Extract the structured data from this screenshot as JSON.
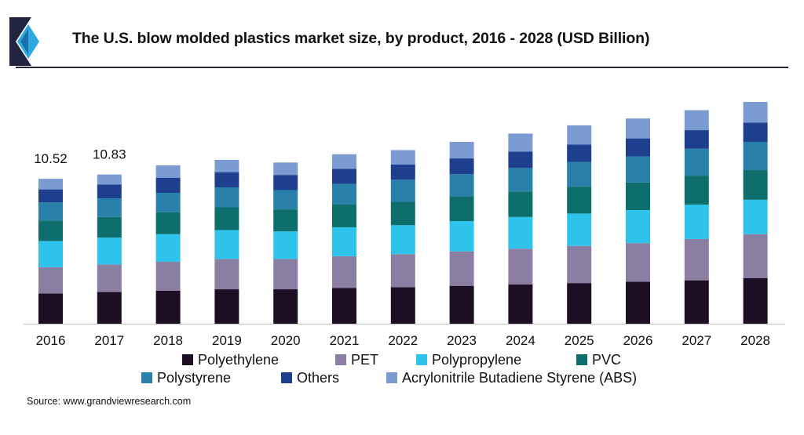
{
  "header": {
    "title": "The U.S. blow molded plastics market size, by product, 2016 - 2028 (USD Billion)"
  },
  "colors": {
    "accent": "#21243f",
    "logo_dark": "#21243f",
    "logo_light": "#2ea9e0"
  },
  "source": "Source: www.grandviewresearch.com",
  "chart_data": {
    "type": "bar",
    "stacked": true,
    "title": "The U.S. blow molded plastics market size, by product, 2016 - 2028 (USD Billion)",
    "xlabel": "",
    "ylabel": "",
    "ylim": [
      0,
      16.5
    ],
    "grid": false,
    "legend_position": "bottom",
    "categories": [
      "2016",
      "2017",
      "2018",
      "2019",
      "2020",
      "2021",
      "2022",
      "2023",
      "2024",
      "2025",
      "2026",
      "2027",
      "2028"
    ],
    "totals": [
      10.52,
      10.83,
      11.5,
      11.9,
      11.7,
      12.3,
      12.7,
      13.2,
      13.8,
      14.4,
      14.9,
      15.5,
      16.1
    ],
    "data_labels": [
      {
        "category": "2016",
        "text": "10.52"
      },
      {
        "category": "2017",
        "text": "10.83"
      }
    ],
    "series": [
      {
        "name": "Polyethylene",
        "color": "#1d0f23",
        "values": [
          2.2,
          2.3,
          2.4,
          2.5,
          2.5,
          2.6,
          2.65,
          2.75,
          2.85,
          2.95,
          3.05,
          3.15,
          3.3
        ]
      },
      {
        "name": "PET",
        "color": "#8a7fa3",
        "values": [
          1.9,
          2.0,
          2.1,
          2.2,
          2.2,
          2.3,
          2.4,
          2.5,
          2.6,
          2.7,
          2.8,
          3.0,
          3.2
        ]
      },
      {
        "name": "Polypropylene",
        "color": "#2ec3ea",
        "values": [
          1.9,
          1.95,
          2.0,
          2.1,
          2.0,
          2.1,
          2.1,
          2.2,
          2.3,
          2.35,
          2.4,
          2.5,
          2.5
        ]
      },
      {
        "name": "PVC",
        "color": "#0d6f6b",
        "values": [
          1.5,
          1.5,
          1.6,
          1.65,
          1.6,
          1.65,
          1.7,
          1.8,
          1.85,
          1.95,
          2.0,
          2.1,
          2.15
        ]
      },
      {
        "name": "Polystyrene",
        "color": "#2880ab",
        "values": [
          1.3,
          1.35,
          1.4,
          1.45,
          1.4,
          1.5,
          1.6,
          1.6,
          1.7,
          1.8,
          1.9,
          1.95,
          2.05
        ]
      },
      {
        "name": "Others",
        "color": "#1e3f8e",
        "values": [
          0.95,
          1.0,
          1.1,
          1.1,
          1.1,
          1.1,
          1.1,
          1.15,
          1.2,
          1.25,
          1.3,
          1.35,
          1.4
        ]
      },
      {
        "name": "Acrylonitrile Butadiene Styrene (ABS)",
        "color": "#7b9bd3",
        "values": [
          0.77,
          0.73,
          0.9,
          0.9,
          0.9,
          1.05,
          1.05,
          1.2,
          1.3,
          1.4,
          1.45,
          1.45,
          1.5
        ]
      }
    ]
  }
}
